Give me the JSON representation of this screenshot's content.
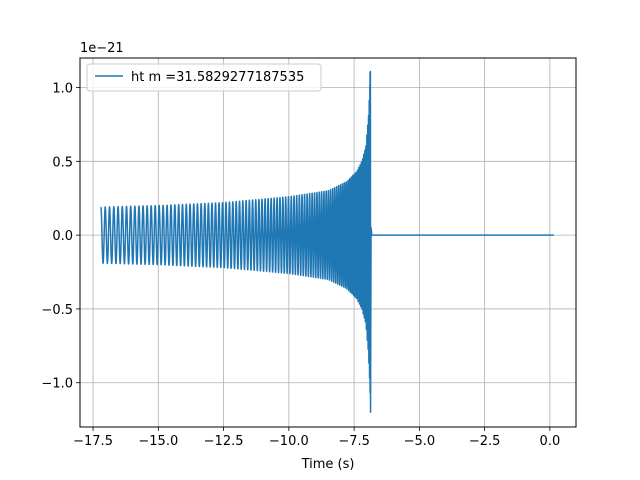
{
  "chart_data": {
    "type": "line",
    "xlabel": "Time (s)",
    "ylabel": "",
    "y_scale_label": "1e−21",
    "y_scale": 1e-21,
    "xlim": [
      -18.0,
      1.0
    ],
    "ylim": [
      -1.3,
      1.2
    ],
    "grid": true,
    "legend_position": "upper-left",
    "x_ticks": [
      -17.5,
      -15.0,
      -12.5,
      -10.0,
      -7.5,
      -5.0,
      -2.5,
      0.0
    ],
    "x_tick_labels": [
      "−17.5",
      "−15.0",
      "−12.5",
      "−10.0",
      "−7.5",
      "−5.0",
      "−2.5",
      "0.0"
    ],
    "y_ticks": [
      -1.0,
      -0.5,
      0.0,
      0.5,
      1.0
    ],
    "y_tick_labels": [
      "−1.0",
      "−0.5",
      "0.0",
      "0.5",
      "1.0"
    ],
    "series": [
      {
        "name": "ht m =31.5829277187535",
        "color": "#1f77b4",
        "description_values": {
          "t_start": -17.2,
          "t_merger": -6.87,
          "t_end": 0.15,
          "start_amplitude": 0.19,
          "peak_positive": 1.1,
          "peak_negative": -1.2,
          "post_merger_value": 0.0
        },
        "envelope": {
          "t": [
            -17.2,
            -15.0,
            -12.5,
            -10.0,
            -8.5,
            -7.8,
            -7.4,
            -7.2,
            -7.05,
            -6.95,
            -6.9,
            -6.87
          ],
          "amplitude": [
            0.19,
            0.2,
            0.22,
            0.26,
            0.3,
            0.36,
            0.43,
            0.5,
            0.6,
            0.8,
            1.0,
            1.15
          ]
        }
      }
    ]
  }
}
